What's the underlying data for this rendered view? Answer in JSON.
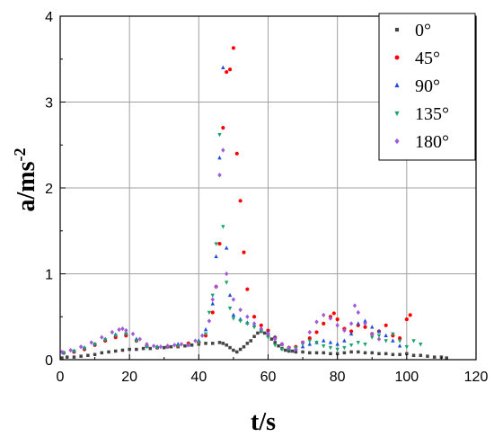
{
  "chart_data": {
    "type": "scatter",
    "title": "",
    "xlabel": "t/s",
    "ylabel_base": "a/ms",
    "ylabel_sup": "-2",
    "xlim": [
      0,
      120
    ],
    "ylim": [
      0,
      4
    ],
    "xticks": [
      0,
      20,
      40,
      60,
      80,
      100,
      120
    ],
    "yticks": [
      0,
      1,
      2,
      3,
      4
    ],
    "xtick_labels": [
      "0",
      "20",
      "40",
      "60",
      "80",
      "100",
      "120"
    ],
    "ytick_labels": [
      "0",
      "1",
      "2",
      "3",
      "4"
    ],
    "grid": true,
    "legend_position": "top-right",
    "series": [
      {
        "name": "0°",
        "marker": "square",
        "color": "#444444",
        "x": [
          0.5,
          2,
          4,
          6,
          8,
          10,
          12,
          14,
          16,
          18,
          20,
          22,
          24,
          26,
          28,
          30,
          32,
          34,
          36,
          38,
          40,
          42,
          44,
          46,
          47,
          48,
          49,
          50,
          51,
          52,
          53,
          54,
          55,
          56,
          57,
          58,
          59,
          60,
          61,
          62,
          63,
          64,
          65,
          66,
          67,
          68,
          70,
          72,
          74,
          76,
          78,
          80,
          82,
          84,
          86,
          88,
          90,
          92,
          94,
          96,
          98,
          100,
          102,
          104,
          106,
          108,
          110,
          111.5
        ],
        "y": [
          0.02,
          0.03,
          0.03,
          0.04,
          0.05,
          0.06,
          0.08,
          0.09,
          0.1,
          0.11,
          0.12,
          0.12,
          0.13,
          0.13,
          0.14,
          0.14,
          0.15,
          0.15,
          0.16,
          0.17,
          0.18,
          0.19,
          0.19,
          0.2,
          0.19,
          0.17,
          0.14,
          0.11,
          0.09,
          0.12,
          0.15,
          0.19,
          0.22,
          0.27,
          0.31,
          0.33,
          0.31,
          0.28,
          0.24,
          0.2,
          0.16,
          0.13,
          0.11,
          0.1,
          0.1,
          0.09,
          0.09,
          0.08,
          0.08,
          0.08,
          0.07,
          0.07,
          0.08,
          0.09,
          0.09,
          0.08,
          0.08,
          0.07,
          0.07,
          0.06,
          0.06,
          0.07,
          0.05,
          0.05,
          0.04,
          0.03,
          0.03,
          0.02
        ]
      },
      {
        "name": "45°",
        "marker": "circle",
        "color": "#ff0000",
        "x": [
          1,
          4,
          7,
          10,
          13,
          16,
          19,
          22,
          25,
          28,
          31,
          34,
          37,
          40,
          42,
          44,
          45,
          46,
          47,
          48,
          49,
          50,
          51,
          52,
          53,
          54,
          56,
          58,
          60,
          62,
          64,
          66,
          68,
          70,
          72,
          74,
          76,
          78,
          79,
          80,
          82,
          84,
          86,
          88,
          90,
          92,
          94,
          96,
          98,
          100,
          101
        ],
        "y": [
          0.08,
          0.09,
          0.12,
          0.17,
          0.22,
          0.26,
          0.28,
          0.22,
          0.16,
          0.14,
          0.15,
          0.16,
          0.19,
          0.2,
          0.28,
          0.55,
          0.85,
          1.35,
          2.7,
          3.35,
          3.38,
          3.63,
          2.4,
          1.85,
          1.25,
          0.82,
          0.5,
          0.4,
          0.34,
          0.26,
          0.18,
          0.14,
          0.15,
          0.2,
          0.25,
          0.32,
          0.42,
          0.5,
          0.54,
          0.47,
          0.36,
          0.33,
          0.4,
          0.38,
          0.3,
          0.33,
          0.4,
          0.28,
          0.25,
          0.47,
          0.52
        ]
      },
      {
        "name": "90°",
        "marker": "triangle-up",
        "color": "#1f4fd6",
        "x": [
          1,
          4,
          7,
          10,
          13,
          16,
          19,
          22,
          25,
          28,
          31,
          34,
          37,
          40,
          42,
          44,
          45,
          46,
          47,
          48,
          49,
          50,
          52,
          54,
          56,
          58,
          60,
          62,
          64,
          66,
          68,
          70,
          72,
          74,
          76,
          78,
          80,
          82,
          84,
          86,
          88,
          90,
          92,
          94,
          96,
          98
        ],
        "y": [
          0.08,
          0.1,
          0.14,
          0.18,
          0.24,
          0.29,
          0.31,
          0.24,
          0.16,
          0.15,
          0.16,
          0.18,
          0.17,
          0.22,
          0.35,
          0.65,
          1.2,
          2.35,
          3.4,
          1.3,
          0.75,
          0.52,
          0.47,
          0.43,
          0.4,
          0.36,
          0.32,
          0.26,
          0.18,
          0.13,
          0.12,
          0.15,
          0.18,
          0.2,
          0.22,
          0.2,
          0.18,
          0.22,
          0.3,
          0.42,
          0.45,
          0.38,
          0.33,
          0.28,
          0.22,
          0.16
        ]
      },
      {
        "name": "135°",
        "marker": "triangle-down",
        "color": "#1aa36b",
        "x": [
          1,
          4,
          7,
          10,
          13,
          16,
          19,
          22,
          25,
          28,
          31,
          34,
          37,
          40,
          42,
          43,
          44,
          45,
          46,
          47,
          48,
          49,
          50,
          52,
          54,
          56,
          58,
          60,
          62,
          64,
          66,
          68,
          70,
          72,
          74,
          76,
          78,
          80,
          82,
          84,
          86,
          88,
          90,
          92,
          94,
          96,
          98,
          100,
          102,
          104
        ],
        "y": [
          0.08,
          0.1,
          0.13,
          0.18,
          0.23,
          0.28,
          0.3,
          0.22,
          0.15,
          0.14,
          0.15,
          0.16,
          0.17,
          0.2,
          0.3,
          0.55,
          0.75,
          1.35,
          2.62,
          1.55,
          0.9,
          0.6,
          0.48,
          0.45,
          0.42,
          0.38,
          0.33,
          0.26,
          0.17,
          0.12,
          0.12,
          0.14,
          0.18,
          0.22,
          0.2,
          0.16,
          0.14,
          0.12,
          0.14,
          0.17,
          0.2,
          0.18,
          0.26,
          0.28,
          0.22,
          0.3,
          0.22,
          0.15,
          0.22,
          0.18
        ]
      },
      {
        "name": "180°",
        "marker": "diamond",
        "color": "#a05ad8",
        "x": [
          0.5,
          3,
          6,
          9,
          12,
          15,
          17,
          18,
          19,
          21,
          23,
          25,
          27,
          29,
          31,
          33,
          35,
          37,
          39,
          41,
          43,
          44,
          45,
          46,
          47,
          48,
          50,
          52,
          54,
          56,
          58,
          60,
          62,
          64,
          66,
          68,
          70,
          72,
          74,
          76,
          78,
          80,
          82,
          84,
          85,
          86,
          88,
          90,
          92
        ],
        "y": [
          0.09,
          0.11,
          0.15,
          0.2,
          0.26,
          0.32,
          0.35,
          0.36,
          0.34,
          0.3,
          0.24,
          0.18,
          0.16,
          0.15,
          0.16,
          0.17,
          0.18,
          0.17,
          0.22,
          0.28,
          0.45,
          0.7,
          0.85,
          2.15,
          2.44,
          1.0,
          0.7,
          0.58,
          0.5,
          0.42,
          0.36,
          0.3,
          0.24,
          0.18,
          0.14,
          0.12,
          0.2,
          0.32,
          0.44,
          0.52,
          0.48,
          0.4,
          0.34,
          0.42,
          0.63,
          0.55,
          0.42,
          0.3,
          0.24
        ]
      }
    ]
  }
}
